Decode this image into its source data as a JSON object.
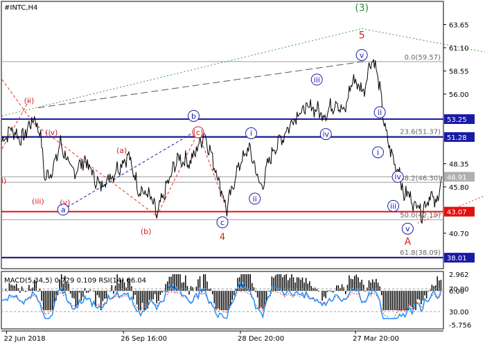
{
  "chart_data": {
    "type": "line",
    "symbol": "#INTC,H4",
    "colors": {
      "background": "#ffffff",
      "price": "#000000",
      "grid": "#d9d9d9",
      "hline_blue": "#1a1aa6",
      "hline_red": "#e01010",
      "fib_line": "#9a9a9a",
      "wave_blue": "#1a1aa6",
      "wave_red": "#d42020",
      "wave_green": "#2e8b2e",
      "up_trend": "#3a9a3a",
      "down_trend": "#e03030",
      "macd_hist": "#000000",
      "rsi": "#1e90ff",
      "signal": "#e03030"
    },
    "y_axis": {
      "ticks": [
        "63.65",
        "61.10",
        "58.55",
        "56.00",
        "48.35",
        "45.80",
        "40.70"
      ],
      "tick_values": [
        63.65,
        61.1,
        58.55,
        56.0,
        48.35,
        45.8,
        40.7
      ],
      "ylim": [
        36.8,
        66.2
      ]
    },
    "x_axis": {
      "ticks": [
        "22 Jun 2018",
        "26 Sep 16:00",
        "28 Dec 20:00",
        "27 Mar 20:00"
      ],
      "tick_index": [
        5,
        135,
        265,
        393
      ],
      "n_bars": 490
    },
    "levels": [
      {
        "label": "53.25",
        "value": 53.25,
        "style": "blue",
        "thick": true
      },
      {
        "label": "51.28",
        "value": 51.28,
        "style": "blue",
        "thick": true
      },
      {
        "label": "43.07",
        "value": 43.07,
        "style": "red",
        "thick": true
      },
      {
        "label": "38.01",
        "value": 38.01,
        "style": "blue",
        "thick": true
      },
      {
        "label": "46.91",
        "value": 46.91,
        "style": "gray",
        "thick": false
      }
    ],
    "fib_levels": [
      {
        "label": "0.0(59.57)",
        "value": 59.57
      },
      {
        "label": "23.6(51.37)",
        "value": 51.37
      },
      {
        "label": "38.2(46.30)",
        "value": 46.3
      },
      {
        "label": "50.0(42.19)",
        "value": 42.19
      },
      {
        "label": "61.8(38.09)",
        "value": 38.09
      }
    ],
    "price_anchors": [
      [
        0,
        50.8
      ],
      [
        10,
        52.2
      ],
      [
        22,
        51.0
      ],
      [
        35,
        53.4
      ],
      [
        42,
        52.0
      ],
      [
        48,
        46.6
      ],
      [
        58,
        48.2
      ],
      [
        65,
        50.6
      ],
      [
        78,
        47.3
      ],
      [
        92,
        48.8
      ],
      [
        108,
        45.9
      ],
      [
        122,
        47.1
      ],
      [
        140,
        49.3
      ],
      [
        152,
        45.6
      ],
      [
        165,
        44.7
      ],
      [
        172,
        42.6
      ],
      [
        183,
        45.8
      ],
      [
        195,
        48.9
      ],
      [
        210,
        48.6
      ],
      [
        225,
        51.7
      ],
      [
        236,
        48.3
      ],
      [
        250,
        43.3
      ],
      [
        262,
        47.9
      ],
      [
        275,
        50.1
      ],
      [
        288,
        45.6
      ],
      [
        300,
        49.6
      ],
      [
        315,
        51.8
      ],
      [
        328,
        53.9
      ],
      [
        345,
        54.6
      ],
      [
        358,
        53.7
      ],
      [
        372,
        55.3
      ],
      [
        380,
        53.8
      ],
      [
        390,
        57.7
      ],
      [
        402,
        56.3
      ],
      [
        410,
        59.9
      ],
      [
        416,
        59.0
      ],
      [
        422,
        55.1
      ],
      [
        427,
        51.4
      ],
      [
        431,
        50.2
      ],
      [
        436,
        48.4
      ],
      [
        442,
        47.6
      ],
      [
        447,
        44.6
      ],
      [
        452,
        45.3
      ],
      [
        457,
        43.8
      ],
      [
        462,
        44.2
      ],
      [
        467,
        42.8
      ],
      [
        472,
        44.4
      ],
      [
        478,
        44.9
      ],
      [
        483,
        43.5
      ],
      [
        487,
        46.4
      ],
      [
        489,
        46.9
      ]
    ],
    "wave_labels": [
      {
        "text": "(3)",
        "bar": 400,
        "price": 65.5,
        "color": "green",
        "circle": false,
        "size": 14
      },
      {
        "text": "5",
        "bar": 400,
        "price": 62.5,
        "color": "red",
        "circle": false,
        "size": 14
      },
      {
        "text": "v",
        "bar": 400,
        "price": 60.3,
        "color": "blue",
        "circle": true
      },
      {
        "text": "iii",
        "bar": 350,
        "price": 57.6,
        "color": "blue",
        "circle": true
      },
      {
        "text": "iv",
        "bar": 360,
        "price": 51.6,
        "color": "blue",
        "circle": true
      },
      {
        "text": "ii",
        "bar": 420,
        "price": 54.0,
        "color": "blue",
        "circle": true
      },
      {
        "text": "i",
        "bar": 418,
        "price": 49.6,
        "color": "blue",
        "circle": true
      },
      {
        "text": "iv",
        "bar": 440,
        "price": 46.9,
        "color": "blue",
        "circle": true
      },
      {
        "text": "iii",
        "bar": 435,
        "price": 43.7,
        "color": "blue",
        "circle": true
      },
      {
        "text": "v",
        "bar": 451,
        "price": 41.2,
        "color": "blue",
        "circle": true
      },
      {
        "text": "A",
        "bar": 451,
        "price": 39.8,
        "color": "red",
        "circle": false,
        "size": 14
      },
      {
        "text": "b",
        "bar": 213,
        "price": 53.6,
        "color": "blue",
        "circle": true
      },
      {
        "text": "c",
        "bar": 245,
        "price": 41.9,
        "color": "blue",
        "circle": true
      },
      {
        "text": "4",
        "bar": 245,
        "price": 40.3,
        "color": "red",
        "circle": false,
        "size": 13
      },
      {
        "text": "i",
        "bar": 277,
        "price": 51.7,
        "color": "blue",
        "circle": true
      },
      {
        "text": "ii",
        "bar": 281,
        "price": 44.5,
        "color": "blue",
        "circle": true
      },
      {
        "text": "(c)",
        "bar": 218,
        "price": 51.8,
        "color": "red",
        "circle": true
      },
      {
        "text": "a",
        "bar": 68,
        "price": 43.3,
        "color": "blue",
        "circle": true
      },
      {
        "text": "(a)",
        "bar": 133,
        "price": 49.8,
        "color": "red",
        "circle": false
      },
      {
        "text": "(b)",
        "bar": 160,
        "price": 40.9,
        "color": "red",
        "circle": false
      },
      {
        "text": "(ii)",
        "bar": 30,
        "price": 55.3,
        "color": "red",
        "circle": false
      },
      {
        "text": "(iv)",
        "bar": 55,
        "price": 51.8,
        "color": "red",
        "circle": false
      },
      {
        "text": "(iii)",
        "bar": 40,
        "price": 44.2,
        "color": "red",
        "circle": false
      },
      {
        "text": "(v)",
        "bar": 70,
        "price": 44.1,
        "color": "red",
        "circle": false
      },
      {
        "text": "i)",
        "bar": 2,
        "price": 46.5,
        "color": "red",
        "circle": false
      }
    ],
    "trendlines": [
      {
        "color": "green",
        "dash": "dotted",
        "from": [
          0,
          53.6
        ],
        "to": [
          400,
          63.2
        ]
      },
      {
        "color": "green",
        "dash": "dotted",
        "from": [
          400,
          63.2
        ],
        "to": [
          640,
          58.7
        ]
      },
      {
        "color": "gray",
        "dash": "long",
        "from": [
          40,
          54.5
        ],
        "to": [
          403,
          59.6
        ]
      },
      {
        "color": "red",
        "dash": "dotted",
        "from": [
          462,
          41.8
        ],
        "to": [
          640,
          49.0
        ]
      },
      {
        "color": "blue",
        "dash": "dashed",
        "from": [
          68,
          43.3
        ],
        "to": [
          213,
          51.8
        ]
      },
      {
        "color": "red",
        "dash": "dashed",
        "from": [
          0,
          57.6
        ],
        "to": [
          35,
          52.8
        ]
      },
      {
        "color": "red",
        "dash": "dashed",
        "from": [
          35,
          52.8
        ],
        "to": [
          172,
          42.6
        ]
      },
      {
        "color": "red",
        "dash": "dashed",
        "from": [
          172,
          42.6
        ],
        "to": [
          218,
          51.8
        ]
      },
      {
        "color": "red",
        "dash": "dashed",
        "from": [
          218,
          51.8
        ],
        "to": [
          250,
          43.3
        ]
      },
      {
        "color": "red",
        "dash": "dashed",
        "from": [
          0,
          50.0
        ],
        "to": [
          30,
          55.3
        ]
      }
    ],
    "indicator": {
      "label": "MACD(5,34,5) 0.729 0.109 RSI(14) 66.04",
      "ticks": [
        "2.962",
        "70.00",
        "0.00",
        "30.00",
        "-5.756"
      ]
    }
  }
}
